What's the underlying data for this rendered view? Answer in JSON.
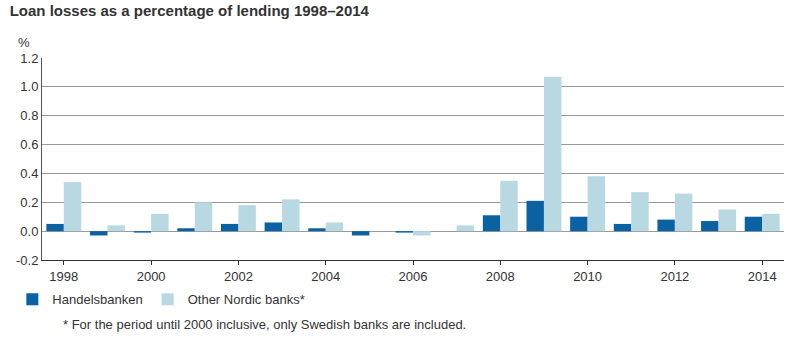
{
  "chart_data": {
    "type": "bar",
    "title": "Loan losses as a percentage of lending 1998–2014",
    "ylabel": "%",
    "annotations": [
      "* For the period until 2000 inclusive, only Swedish banks are included."
    ],
    "categories": [
      "1998",
      null,
      "2000",
      null,
      "2002",
      null,
      "2004",
      null,
      "2006",
      null,
      "2008",
      null,
      "2010",
      null,
      "2012",
      null,
      "2014"
    ],
    "series": [
      {
        "name": "Handelsbanken",
        "color": "#0b62a3",
        "values": [
          0.05,
          -0.03,
          -0.01,
          0.02,
          0.05,
          0.06,
          0.02,
          -0.03,
          -0.01,
          0.0,
          0.11,
          0.21,
          0.1,
          0.05,
          0.08,
          0.07,
          0.1
        ]
      },
      {
        "name": "Other Nordic banks*",
        "color": "#b8d8e2",
        "values": [
          0.34,
          0.04,
          0.12,
          0.2,
          0.18,
          0.22,
          0.06,
          0.0,
          -0.03,
          0.04,
          0.35,
          1.07,
          0.38,
          0.27,
          0.26,
          0.15,
          0.12
        ]
      }
    ],
    "ylim": [
      -0.2,
      1.2
    ],
    "yticks": [
      -0.2,
      {
        "value": 0,
        "label": "0.0"
      },
      0.2,
      0.4,
      0.6,
      0.8,
      {
        "value": 1,
        "label": "1.0"
      },
      1.2
    ],
    "grid": true,
    "legend": "bottom"
  }
}
